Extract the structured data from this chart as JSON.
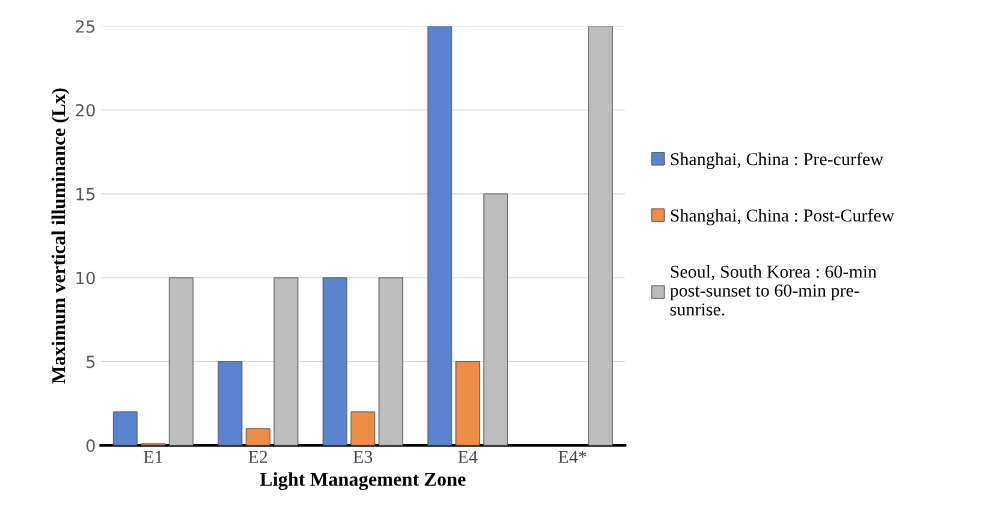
{
  "chart_data": {
    "type": "bar",
    "xlabel": "Light Management Zone",
    "ylabel": "Maximum vertical illuminance (Lx)",
    "categories": [
      "E1",
      "E2",
      "E3",
      "E4",
      "E4*"
    ],
    "series": [
      {
        "name": "Shanghai, China : Pre-curfew",
        "color": "#5b84d0",
        "values": [
          2,
          5,
          10,
          25,
          null
        ]
      },
      {
        "name": "Shanghai, China : Post-Curfew",
        "color": "#ef8c45",
        "values": [
          0.1,
          1,
          2,
          5,
          null
        ]
      },
      {
        "name": "Seoul, South Korea : 60-min\npost-sunset to 60-min pre-\nsunrise.",
        "color": "#bdbdbd",
        "values": [
          10,
          10,
          10,
          15,
          25
        ]
      }
    ],
    "ylim": [
      0,
      25
    ],
    "yticks": [
      0,
      5,
      10,
      15,
      20,
      25
    ],
    "grid": "y",
    "legend": "right"
  }
}
